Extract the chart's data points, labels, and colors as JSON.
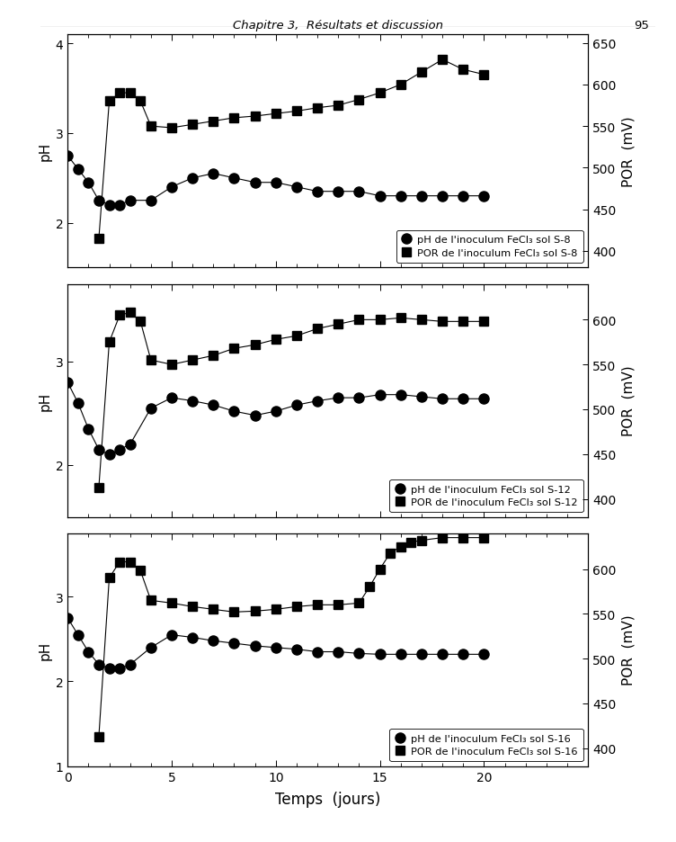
{
  "panel1": {
    "ph_x": [
      0,
      0.5,
      1,
      1.5,
      2,
      2.5,
      3,
      4,
      5,
      6,
      7,
      8,
      9,
      10,
      11,
      12,
      13,
      14,
      15,
      16,
      17,
      18,
      19,
      20
    ],
    "ph_y": [
      2.75,
      2.6,
      2.45,
      2.25,
      2.2,
      2.2,
      2.25,
      2.25,
      2.4,
      2.5,
      2.55,
      2.5,
      2.45,
      2.45,
      2.4,
      2.35,
      2.35,
      2.35,
      2.3,
      2.3,
      2.3,
      2.3,
      2.3,
      2.3
    ],
    "por_x": [
      1.5,
      2,
      2.5,
      3,
      3.5,
      4,
      5,
      6,
      7,
      8,
      9,
      10,
      11,
      12,
      13,
      14,
      15,
      16,
      17,
      18,
      19,
      20
    ],
    "por_y": [
      415,
      580,
      590,
      590,
      580,
      550,
      548,
      552,
      556,
      560,
      562,
      565,
      568,
      572,
      575,
      582,
      590,
      600,
      615,
      630,
      618,
      612
    ],
    "ylim_ph": [
      1.5,
      4.1
    ],
    "ylim_por": [
      380,
      660
    ],
    "yticks_ph": [
      2.0,
      3.0,
      4.0
    ],
    "yticks_por": [
      400,
      450,
      500,
      550,
      600,
      650
    ],
    "legend_ph": "pH de l'inoculum FeCl₃ sol S-8",
    "legend_por": "POR de l'inoculum FeCl₃ sol S-8",
    "show_650": true
  },
  "panel2": {
    "ph_x": [
      0,
      0.5,
      1,
      1.5,
      2,
      2.5,
      3,
      4,
      5,
      6,
      7,
      8,
      9,
      10,
      11,
      12,
      13,
      14,
      15,
      16,
      17,
      18,
      19,
      20
    ],
    "ph_y": [
      2.8,
      2.6,
      2.35,
      2.15,
      2.1,
      2.15,
      2.2,
      2.55,
      2.65,
      2.62,
      2.58,
      2.52,
      2.48,
      2.52,
      2.58,
      2.62,
      2.65,
      2.65,
      2.68,
      2.68,
      2.66,
      2.64,
      2.64,
      2.64
    ],
    "por_x": [
      1.5,
      2,
      2.5,
      3,
      3.5,
      4,
      5,
      6,
      7,
      8,
      9,
      10,
      11,
      12,
      13,
      14,
      15,
      16,
      17,
      18,
      19,
      20
    ],
    "por_y": [
      413,
      575,
      605,
      608,
      598,
      555,
      550,
      555,
      560,
      568,
      572,
      578,
      582,
      590,
      595,
      600,
      600,
      602,
      600,
      598,
      598,
      598
    ],
    "ylim_ph": [
      1.5,
      3.75
    ],
    "ylim_por": [
      380,
      640
    ],
    "yticks_ph": [
      2.0,
      3.0
    ],
    "yticks_por": [
      400,
      450,
      500,
      550,
      600
    ],
    "legend_ph": "pH de l'inoculum FeCl₃ sol S-12",
    "legend_por": "POR de l'inoculum FeCl₃ sol S-12",
    "show_650": false
  },
  "panel3": {
    "ph_x": [
      0,
      0.5,
      1,
      1.5,
      2,
      2.5,
      3,
      4,
      5,
      6,
      7,
      8,
      9,
      10,
      11,
      12,
      13,
      14,
      15,
      16,
      17,
      18,
      19,
      20
    ],
    "ph_y": [
      2.75,
      2.55,
      2.35,
      2.2,
      2.15,
      2.15,
      2.2,
      2.4,
      2.55,
      2.52,
      2.48,
      2.45,
      2.42,
      2.4,
      2.38,
      2.35,
      2.35,
      2.33,
      2.32,
      2.32,
      2.32,
      2.32,
      2.32,
      2.32
    ],
    "por_x": [
      1.5,
      2,
      2.5,
      3,
      3.5,
      4,
      5,
      6,
      7,
      8,
      9,
      10,
      11,
      12,
      13,
      14,
      14.5,
      15,
      15.5,
      16,
      16.5,
      17,
      18,
      19,
      20
    ],
    "por_y": [
      413,
      590,
      608,
      608,
      598,
      565,
      562,
      558,
      555,
      552,
      553,
      555,
      558,
      560,
      560,
      562,
      580,
      600,
      618,
      625,
      630,
      632,
      635,
      635,
      635
    ],
    "ylim_ph": [
      1.0,
      3.75
    ],
    "ylim_por": [
      380,
      640
    ],
    "yticks_ph": [
      1.0,
      2.0,
      3.0
    ],
    "yticks_por": [
      400,
      450,
      500,
      550,
      600
    ],
    "legend_ph": "pH de l'inoculum FeCl₃ sol S-16",
    "legend_por": "POR de l'inoculum FeCl₃ sol S-16",
    "show_650": false
  },
  "xlabel": "Temps  (jours)",
  "ylabel_left": "pH",
  "ylabel_right": "POR  (mV)",
  "xlim": [
    0,
    25
  ],
  "xticks": [
    0,
    5,
    10,
    15,
    20
  ],
  "header": "Chapitre 3,  Résultats et discussion",
  "page_num": "95"
}
